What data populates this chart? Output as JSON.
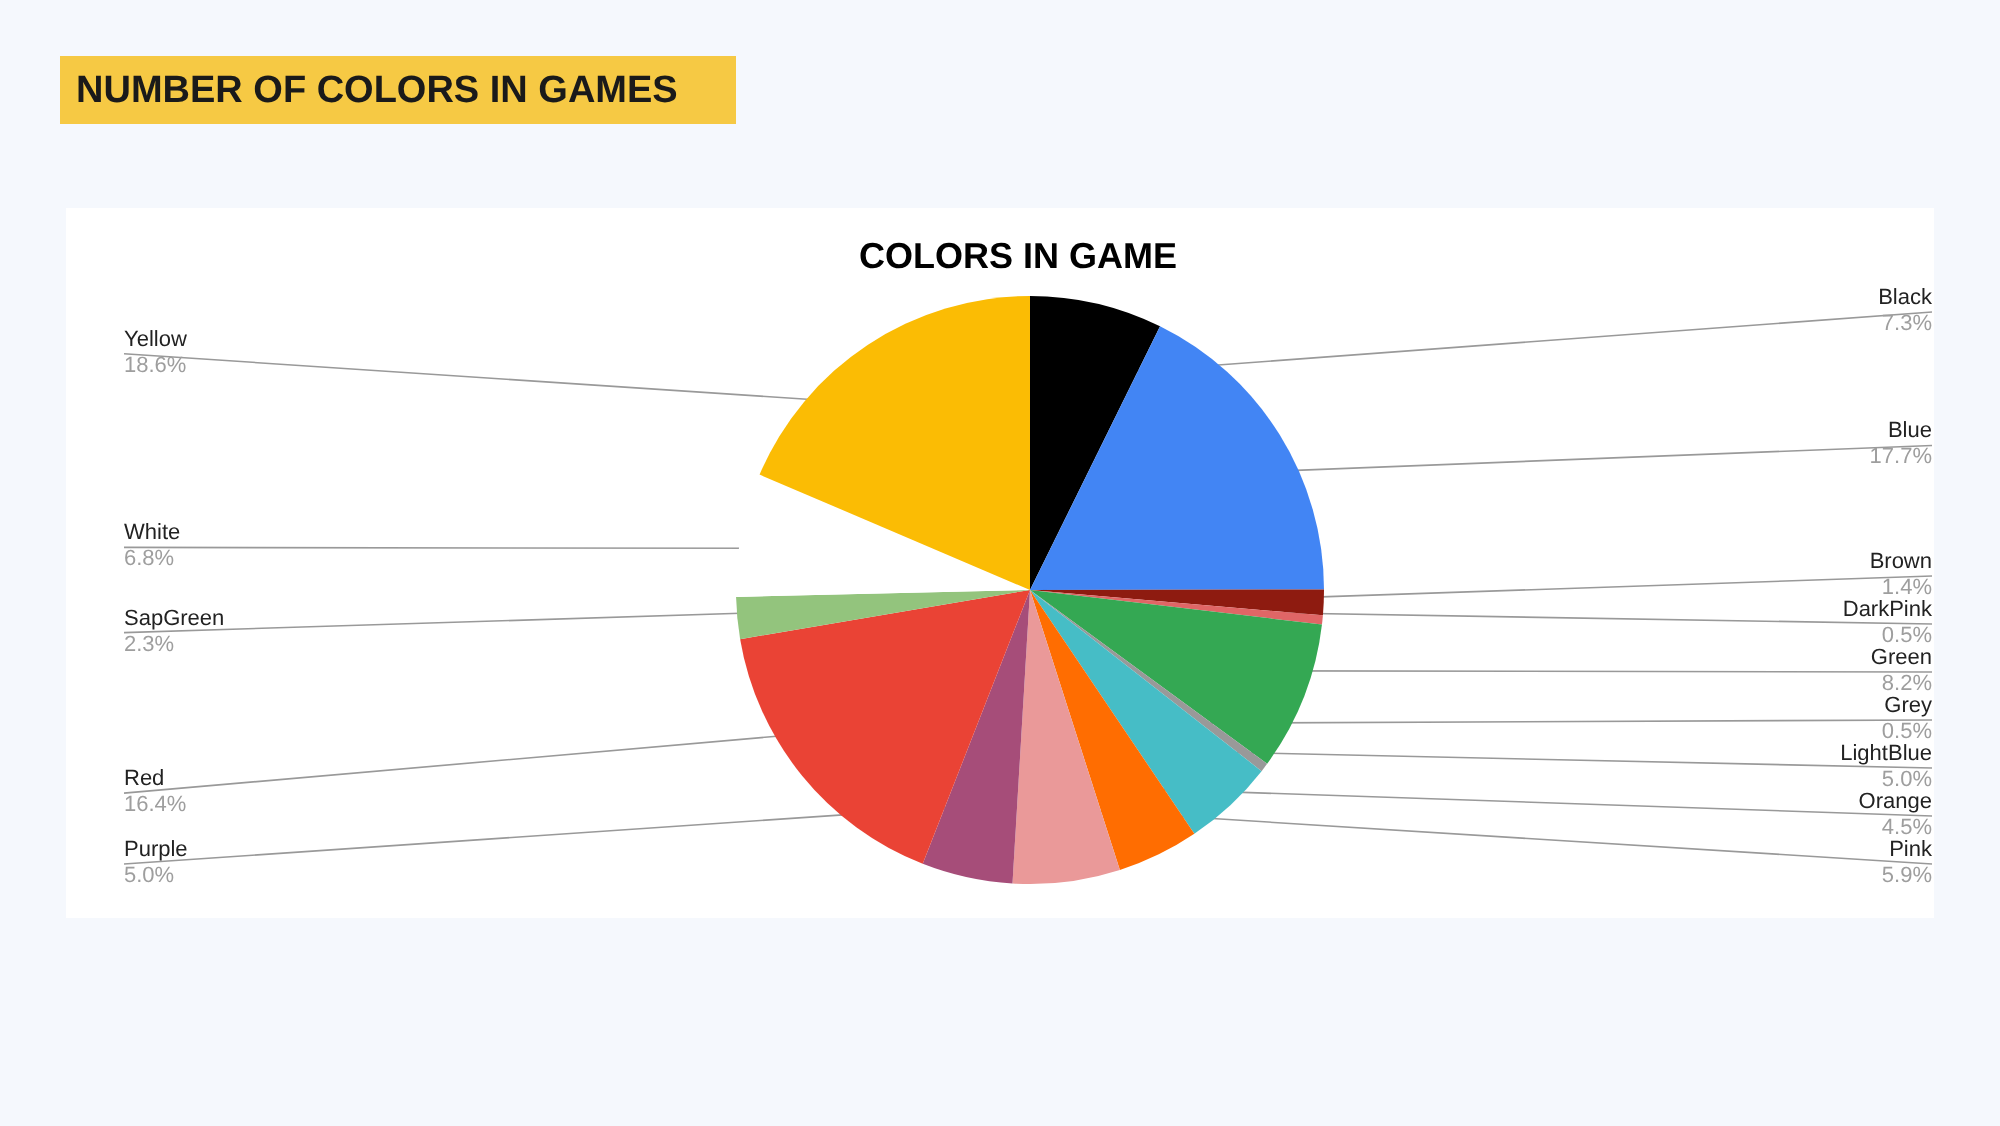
{
  "chart_data": {
    "type": "pie",
    "title": "NUMBER OF COLORS IN GAMES",
    "subtitle": "COLORS IN GAME",
    "categories": [
      "Black",
      "Blue",
      "Brown",
      "DarkPink",
      "Green",
      "Grey",
      "LightBlue",
      "Orange",
      "Pink",
      "Purple",
      "Red",
      "SapGreen",
      "White",
      "Yellow"
    ],
    "values": [
      7.3,
      17.7,
      1.4,
      0.5,
      8.2,
      0.5,
      5.0,
      4.5,
      5.9,
      5.0,
      16.4,
      2.3,
      6.8,
      18.6
    ],
    "value_labels": [
      "7.3%",
      "17.7%",
      "1.4%",
      "0.5%",
      "8.2%",
      "0.5%",
      "5.0%",
      "4.5%",
      "5.9%",
      "5.0%",
      "16.4%",
      "2.3%",
      "6.8%",
      "18.6%"
    ],
    "colors": [
      "#000000",
      "#4285f4",
      "#8e1b10",
      "#e06666",
      "#34a853",
      "#999999",
      "#46bdc6",
      "#ff6d01",
      "#ea9999",
      "#a64d79",
      "#ea4335",
      "#93c47d",
      "#ffffff",
      "#fbbc04"
    ]
  }
}
